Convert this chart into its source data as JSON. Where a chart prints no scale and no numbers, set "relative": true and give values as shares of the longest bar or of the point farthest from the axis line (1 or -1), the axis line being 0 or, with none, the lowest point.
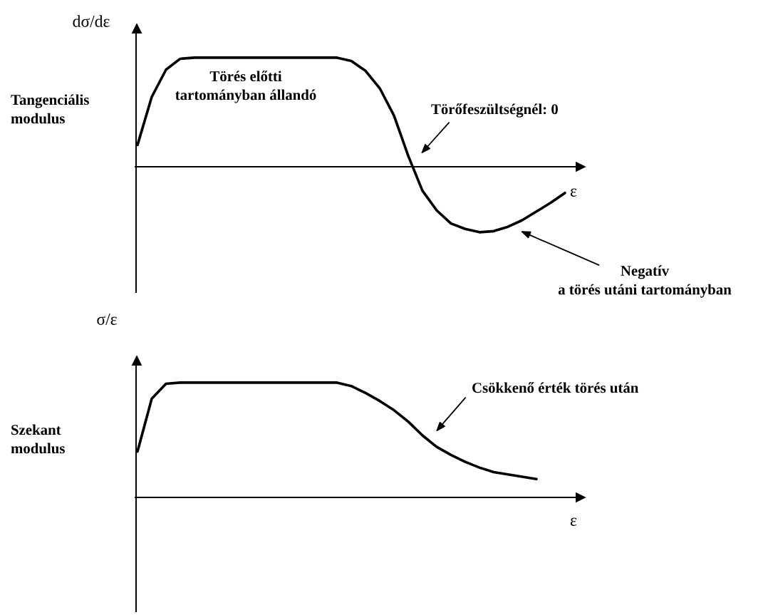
{
  "chart_data": [
    {
      "type": "line",
      "relative": true,
      "ylabel": "dσ/dε",
      "xlabel": "ε",
      "categories": [
        null,
        null,
        null,
        null,
        null,
        null,
        null,
        null,
        null,
        null,
        null,
        null,
        null,
        null,
        null,
        null,
        null,
        null,
        null,
        null,
        null,
        null,
        null,
        null,
        null,
        null,
        null,
        null,
        null,
        null,
        null
      ],
      "series": [
        {
          "color": "#000000",
          "values": [
            0.2,
            0.64,
            0.89,
            0.99,
            1.0,
            1.0,
            1.0,
            1.0,
            1.0,
            1.0,
            1.0,
            1.0,
            1.0,
            1.0,
            1.0,
            0.97,
            0.88,
            0.72,
            0.47,
            0.1,
            -0.22,
            -0.4,
            -0.52,
            -0.57,
            -0.6,
            -0.59,
            -0.55,
            -0.49,
            -0.41,
            -0.33,
            -0.24
          ]
        }
      ],
      "annotations": [
        "Tangenciális\nmodulus",
        "Törés előtti\ntartományban állandó",
        "Törőfeszültségnél: 0",
        "Negatív\na törés utáni tartományban"
      ]
    },
    {
      "type": "line",
      "relative": true,
      "ylabel": "σ/ε",
      "xlabel": "ε",
      "categories": [
        null,
        null,
        null,
        null,
        null,
        null,
        null,
        null,
        null,
        null,
        null,
        null,
        null,
        null,
        null,
        null,
        null,
        null,
        null,
        null,
        null,
        null,
        null,
        null,
        null,
        null,
        null,
        null,
        null
      ],
      "series": [
        {
          "color": "#000000",
          "values": [
            0.4,
            0.86,
            0.99,
            1.0,
            1.0,
            1.0,
            1.0,
            1.0,
            1.0,
            1.0,
            1.0,
            1.0,
            1.0,
            1.0,
            1.0,
            0.97,
            0.91,
            0.84,
            0.76,
            0.66,
            0.54,
            0.44,
            0.37,
            0.31,
            0.26,
            0.22,
            0.2,
            0.18,
            0.16
          ]
        }
      ],
      "annotations": [
        "Szekant\nmodulus",
        "Csökkenő érték törés után"
      ]
    }
  ]
}
